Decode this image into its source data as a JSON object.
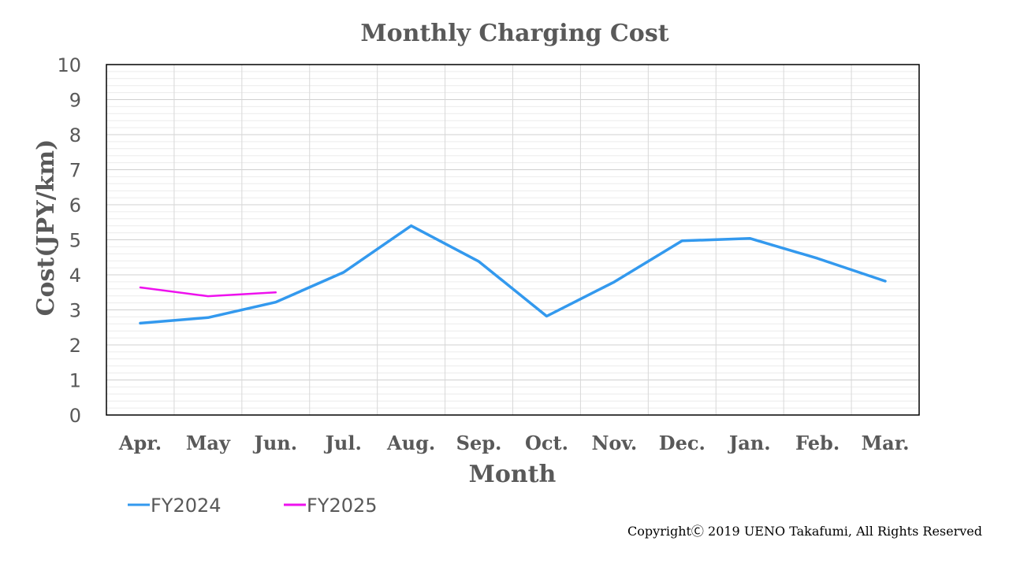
{
  "chart_data": {
    "type": "line",
    "title": "Monthly Charging Cost",
    "xlabel": "Month",
    "ylabel": "Cost(JPY/km)",
    "categories": [
      "Apr.",
      "May",
      "Jun.",
      "Jul.",
      "Aug.",
      "Sep.",
      "Oct.",
      "Nov.",
      "Dec.",
      "Jan.",
      "Feb.",
      "Mar."
    ],
    "ylim": [
      0,
      10
    ],
    "yticks": [
      0,
      1,
      2,
      3,
      4,
      5,
      6,
      7,
      8,
      9,
      10
    ],
    "grid": true,
    "legend": "bottom-left",
    "series": [
      {
        "name": "FY2024",
        "color": "#3399ee",
        "values": [
          2.62,
          2.78,
          3.22,
          4.07,
          5.4,
          4.38,
          2.82,
          3.8,
          4.97,
          5.04,
          4.47,
          3.82
        ]
      },
      {
        "name": "FY2025",
        "color": "#ee11ee",
        "values": [
          3.64,
          3.39,
          3.5,
          null,
          null,
          null,
          null,
          null,
          null,
          null,
          null,
          null
        ]
      }
    ]
  },
  "copyright": "CopyrightⒸ 2019 UENO Takafumi, All Rights Reserved"
}
